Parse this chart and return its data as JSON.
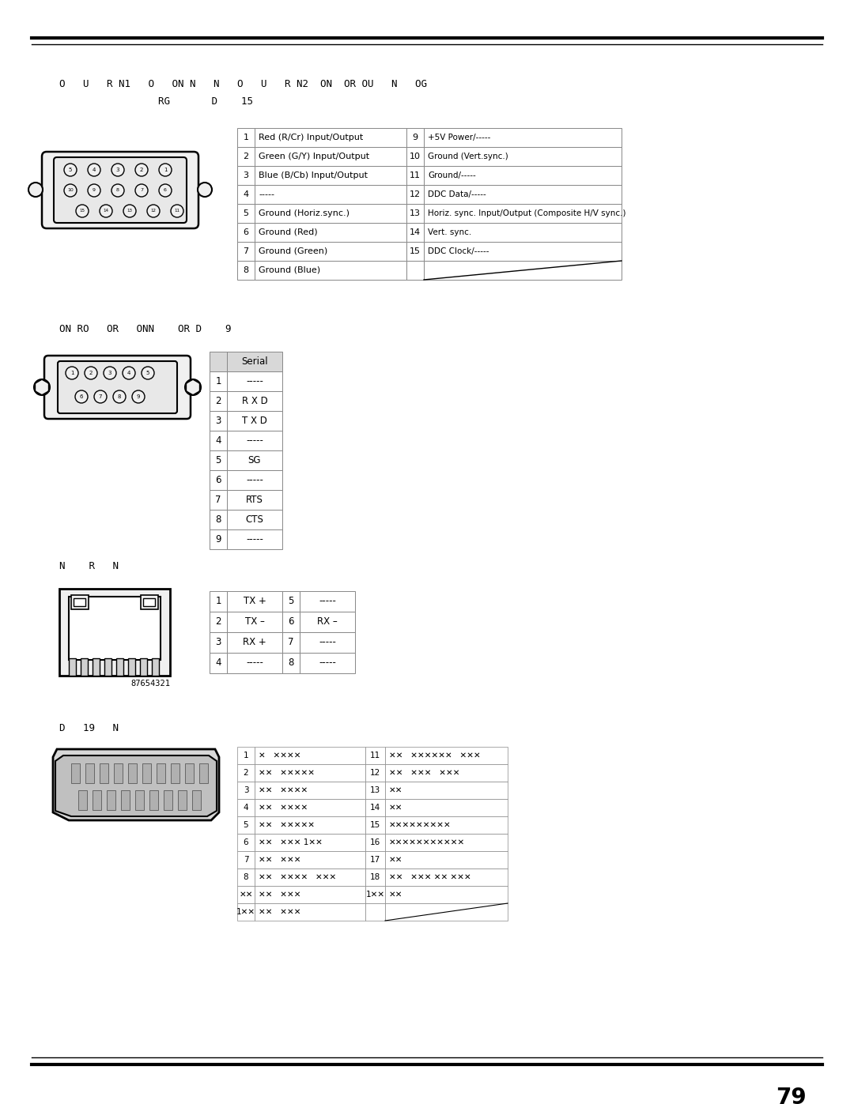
{
  "page_num": "79",
  "bg_color": "#ffffff",
  "section1_title_line1": "O   U   R N1   O   ON N   N   O   U   R N2  ON  OR OU   N   OG",
  "section1_title_line2": "RG       D    15",
  "section2_title": "ON RO   OR   ONN    OR D    9",
  "section3_title": "N    R   N",
  "section4_title": "D   19   N",
  "rgb_table": {
    "rows_left": [
      [
        "1",
        "Red (R/Cr) Input/Output"
      ],
      [
        "2",
        "Green (G/Y) Input/Output"
      ],
      [
        "3",
        "Blue (B/Cb) Input/Output"
      ],
      [
        "4",
        "-----"
      ],
      [
        "5",
        "Ground (Horiz.sync.)"
      ],
      [
        "6",
        "Ground (Red)"
      ],
      [
        "7",
        "Ground (Green)"
      ],
      [
        "8",
        "Ground (Blue)"
      ]
    ],
    "rows_right": [
      [
        "9",
        "+5V Power/-----"
      ],
      [
        "10",
        "Ground (Vert.sync.)"
      ],
      [
        "11",
        "Ground/-----"
      ],
      [
        "12",
        "DDC Data/-----"
      ],
      [
        "13",
        "Horiz. sync. Input/Output (Composite H/V sync.)"
      ],
      [
        "14",
        "Vert. sync."
      ],
      [
        "15",
        "DDC Clock/-----"
      ],
      [
        "",
        ""
      ]
    ]
  },
  "serial_table": {
    "header": "Serial",
    "rows": [
      [
        "1",
        "-----"
      ],
      [
        "2",
        "R X D"
      ],
      [
        "3",
        "T X D"
      ],
      [
        "4",
        "-----"
      ],
      [
        "5",
        "SG"
      ],
      [
        "6",
        "-----"
      ],
      [
        "7",
        "RTS"
      ],
      [
        "8",
        "CTS"
      ],
      [
        "9",
        "-----"
      ]
    ]
  },
  "lan_table": {
    "rows": [
      [
        "1",
        "TX +",
        "5",
        "-----"
      ],
      [
        "2",
        "TX –",
        "6",
        "RX –"
      ],
      [
        "3",
        "RX +",
        "7",
        "-----"
      ],
      [
        "4",
        "-----",
        "8",
        "-----"
      ]
    ]
  },
  "hdmi_table": {
    "rows_left": [
      [
        "1",
        "✕   ✕✕✕✕"
      ],
      [
        "2",
        "✕✕   ✕✕✕✕✕"
      ],
      [
        "3",
        "✕✕   ✕✕✕✕"
      ],
      [
        "4",
        "✕✕   ✕✕✕✕"
      ],
      [
        "5",
        "✕✕   ✕✕✕✕✕"
      ],
      [
        "6",
        "✕✕   ✕✕✕ 1✕✕"
      ],
      [
        "7",
        "✕✕   ✕✕✕"
      ],
      [
        "8",
        "✕✕   ✕✕✕✕   ✕✕✕"
      ],
      [
        "✕✕",
        "✕✕   ✕✕✕"
      ],
      [
        "1✕✕",
        "✕✕   ✕✕✕"
      ]
    ],
    "rows_right": [
      [
        "11",
        "✕✕   ✕✕✕✕✕✕   ✕✕✕"
      ],
      [
        "12",
        "✕✕   ✕✕✕   ✕✕✕"
      ],
      [
        "13",
        "✕✕"
      ],
      [
        "14",
        "✕✕"
      ],
      [
        "15",
        "✕✕✕✕✕✕✕✕✕"
      ],
      [
        "16",
        "✕✕✕✕✕✕✕✕✕✕✕"
      ],
      [
        "17",
        "✕✕"
      ],
      [
        "18",
        "✕✕   ✕✕✕ ✕✕ ✕✕✕"
      ],
      [
        "1✕✕",
        "✕✕"
      ],
      [
        "",
        ""
      ]
    ]
  }
}
